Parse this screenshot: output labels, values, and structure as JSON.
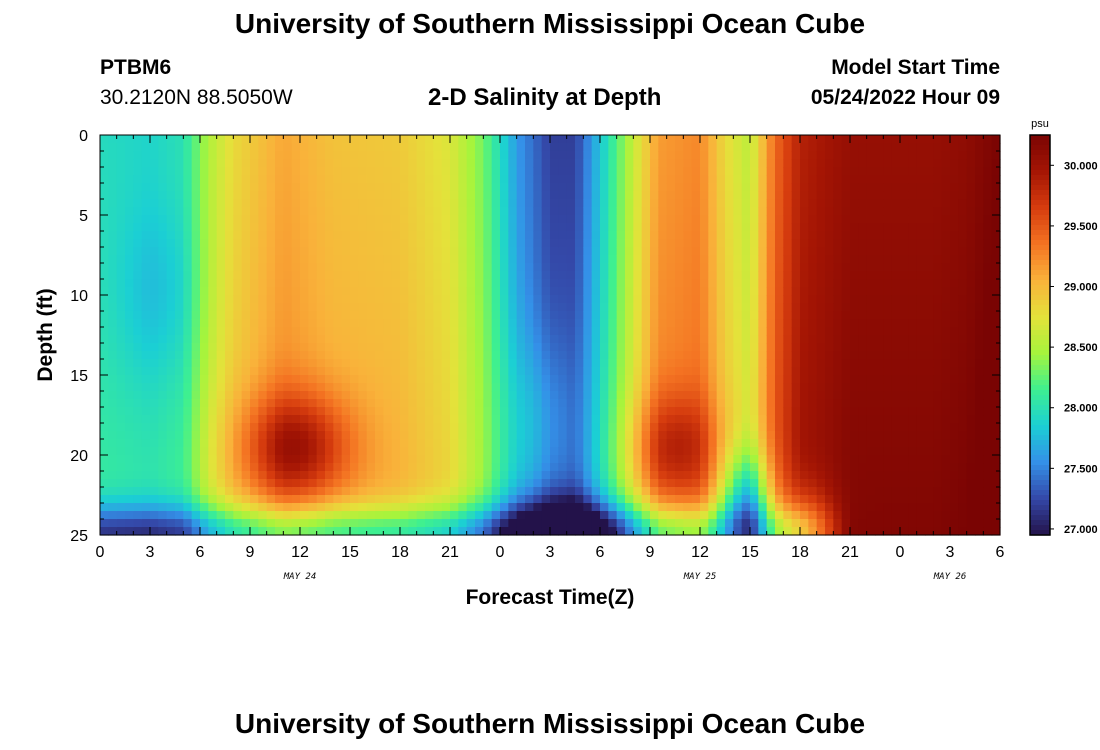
{
  "header": {
    "title": "University of Southern Mississippi Ocean Cube",
    "station": "PTBM6",
    "coords": "30.2120N  88.5050W",
    "model_label": "Model Start Time",
    "model_time": "05/24/2022 Hour 09",
    "footer_title": "University of Southern Mississippi Ocean Cube"
  },
  "chart_data": {
    "type": "heatmap",
    "title": "2-D Salinity at Depth",
    "xlabel": "Forecast Time(Z)",
    "ylabel": "Depth (ft)",
    "x_ticks": [
      "0",
      "3",
      "6",
      "9",
      "12",
      "15",
      "18",
      "21",
      "0",
      "3",
      "6",
      "9",
      "12",
      "15",
      "18",
      "21",
      "0",
      "3",
      "6"
    ],
    "x_date_labels": [
      {
        "label": "MAY 24",
        "tick_index": 4
      },
      {
        "label": "MAY 25",
        "tick_index": 12
      },
      {
        "label": "MAY 26",
        "tick_index": 17
      }
    ],
    "y_ticks": [
      0,
      5,
      10,
      15,
      20,
      25
    ],
    "ylim": [
      0,
      25
    ],
    "x_range_hours": [
      0,
      54
    ],
    "colorbar": {
      "unit": "psu",
      "range": [
        26.95,
        30.25
      ],
      "ticks": [
        "30.000",
        "29.500",
        "29.000",
        "28.500",
        "28.000",
        "27.500",
        "27.000"
      ],
      "colors": [
        "#23124a",
        "#3448a8",
        "#3490e8",
        "#1bcfd4",
        "#3ef090",
        "#a6f43c",
        "#e4e23a",
        "#f9b23a",
        "#f47322",
        "#d63c0e",
        "#a41504",
        "#7a0403"
      ]
    },
    "surface_salinity_psu": [
      {
        "hour": 0,
        "value": 27.95
      },
      {
        "hour": 3,
        "value": 27.9
      },
      {
        "hour": 5,
        "value": 28.0
      },
      {
        "hour": 6.5,
        "value": 28.5
      },
      {
        "hour": 8,
        "value": 28.8
      },
      {
        "hour": 11,
        "value": 29.1
      },
      {
        "hour": 14,
        "value": 28.95
      },
      {
        "hour": 18,
        "value": 28.9
      },
      {
        "hour": 21,
        "value": 28.7
      },
      {
        "hour": 23,
        "value": 28.3
      },
      {
        "hour": 25,
        "value": 27.6
      },
      {
        "hour": 27,
        "value": 27.2
      },
      {
        "hour": 28.5,
        "value": 27.2
      },
      {
        "hour": 30,
        "value": 27.8
      },
      {
        "hour": 32,
        "value": 28.6
      },
      {
        "hour": 33.5,
        "value": 29.15
      },
      {
        "hour": 36,
        "value": 29.25
      },
      {
        "hour": 37.5,
        "value": 28.8
      },
      {
        "hour": 39,
        "value": 28.55
      },
      {
        "hour": 40.5,
        "value": 29.4
      },
      {
        "hour": 42,
        "value": 29.85
      },
      {
        "hour": 45,
        "value": 30.05
      },
      {
        "hour": 50,
        "value": 30.05
      },
      {
        "hour": 52,
        "value": 30.1
      },
      {
        "hour": 54,
        "value": 30.25
      }
    ],
    "features": [
      {
        "description": "High-salinity core",
        "hour": 11.8,
        "depth_ft": 19.5,
        "value": 29.8
      },
      {
        "description": "High-salinity core",
        "hour": 34.5,
        "depth_ft": 19.5,
        "value": 29.5
      },
      {
        "description": "Low-salinity bottom layer",
        "hour": 28.5,
        "depth_ft": 25,
        "value": 27.0
      },
      {
        "description": "Low-salinity bottom pocket",
        "hour": 38.8,
        "depth_ft": 24.5,
        "value": 27.6
      }
    ]
  }
}
